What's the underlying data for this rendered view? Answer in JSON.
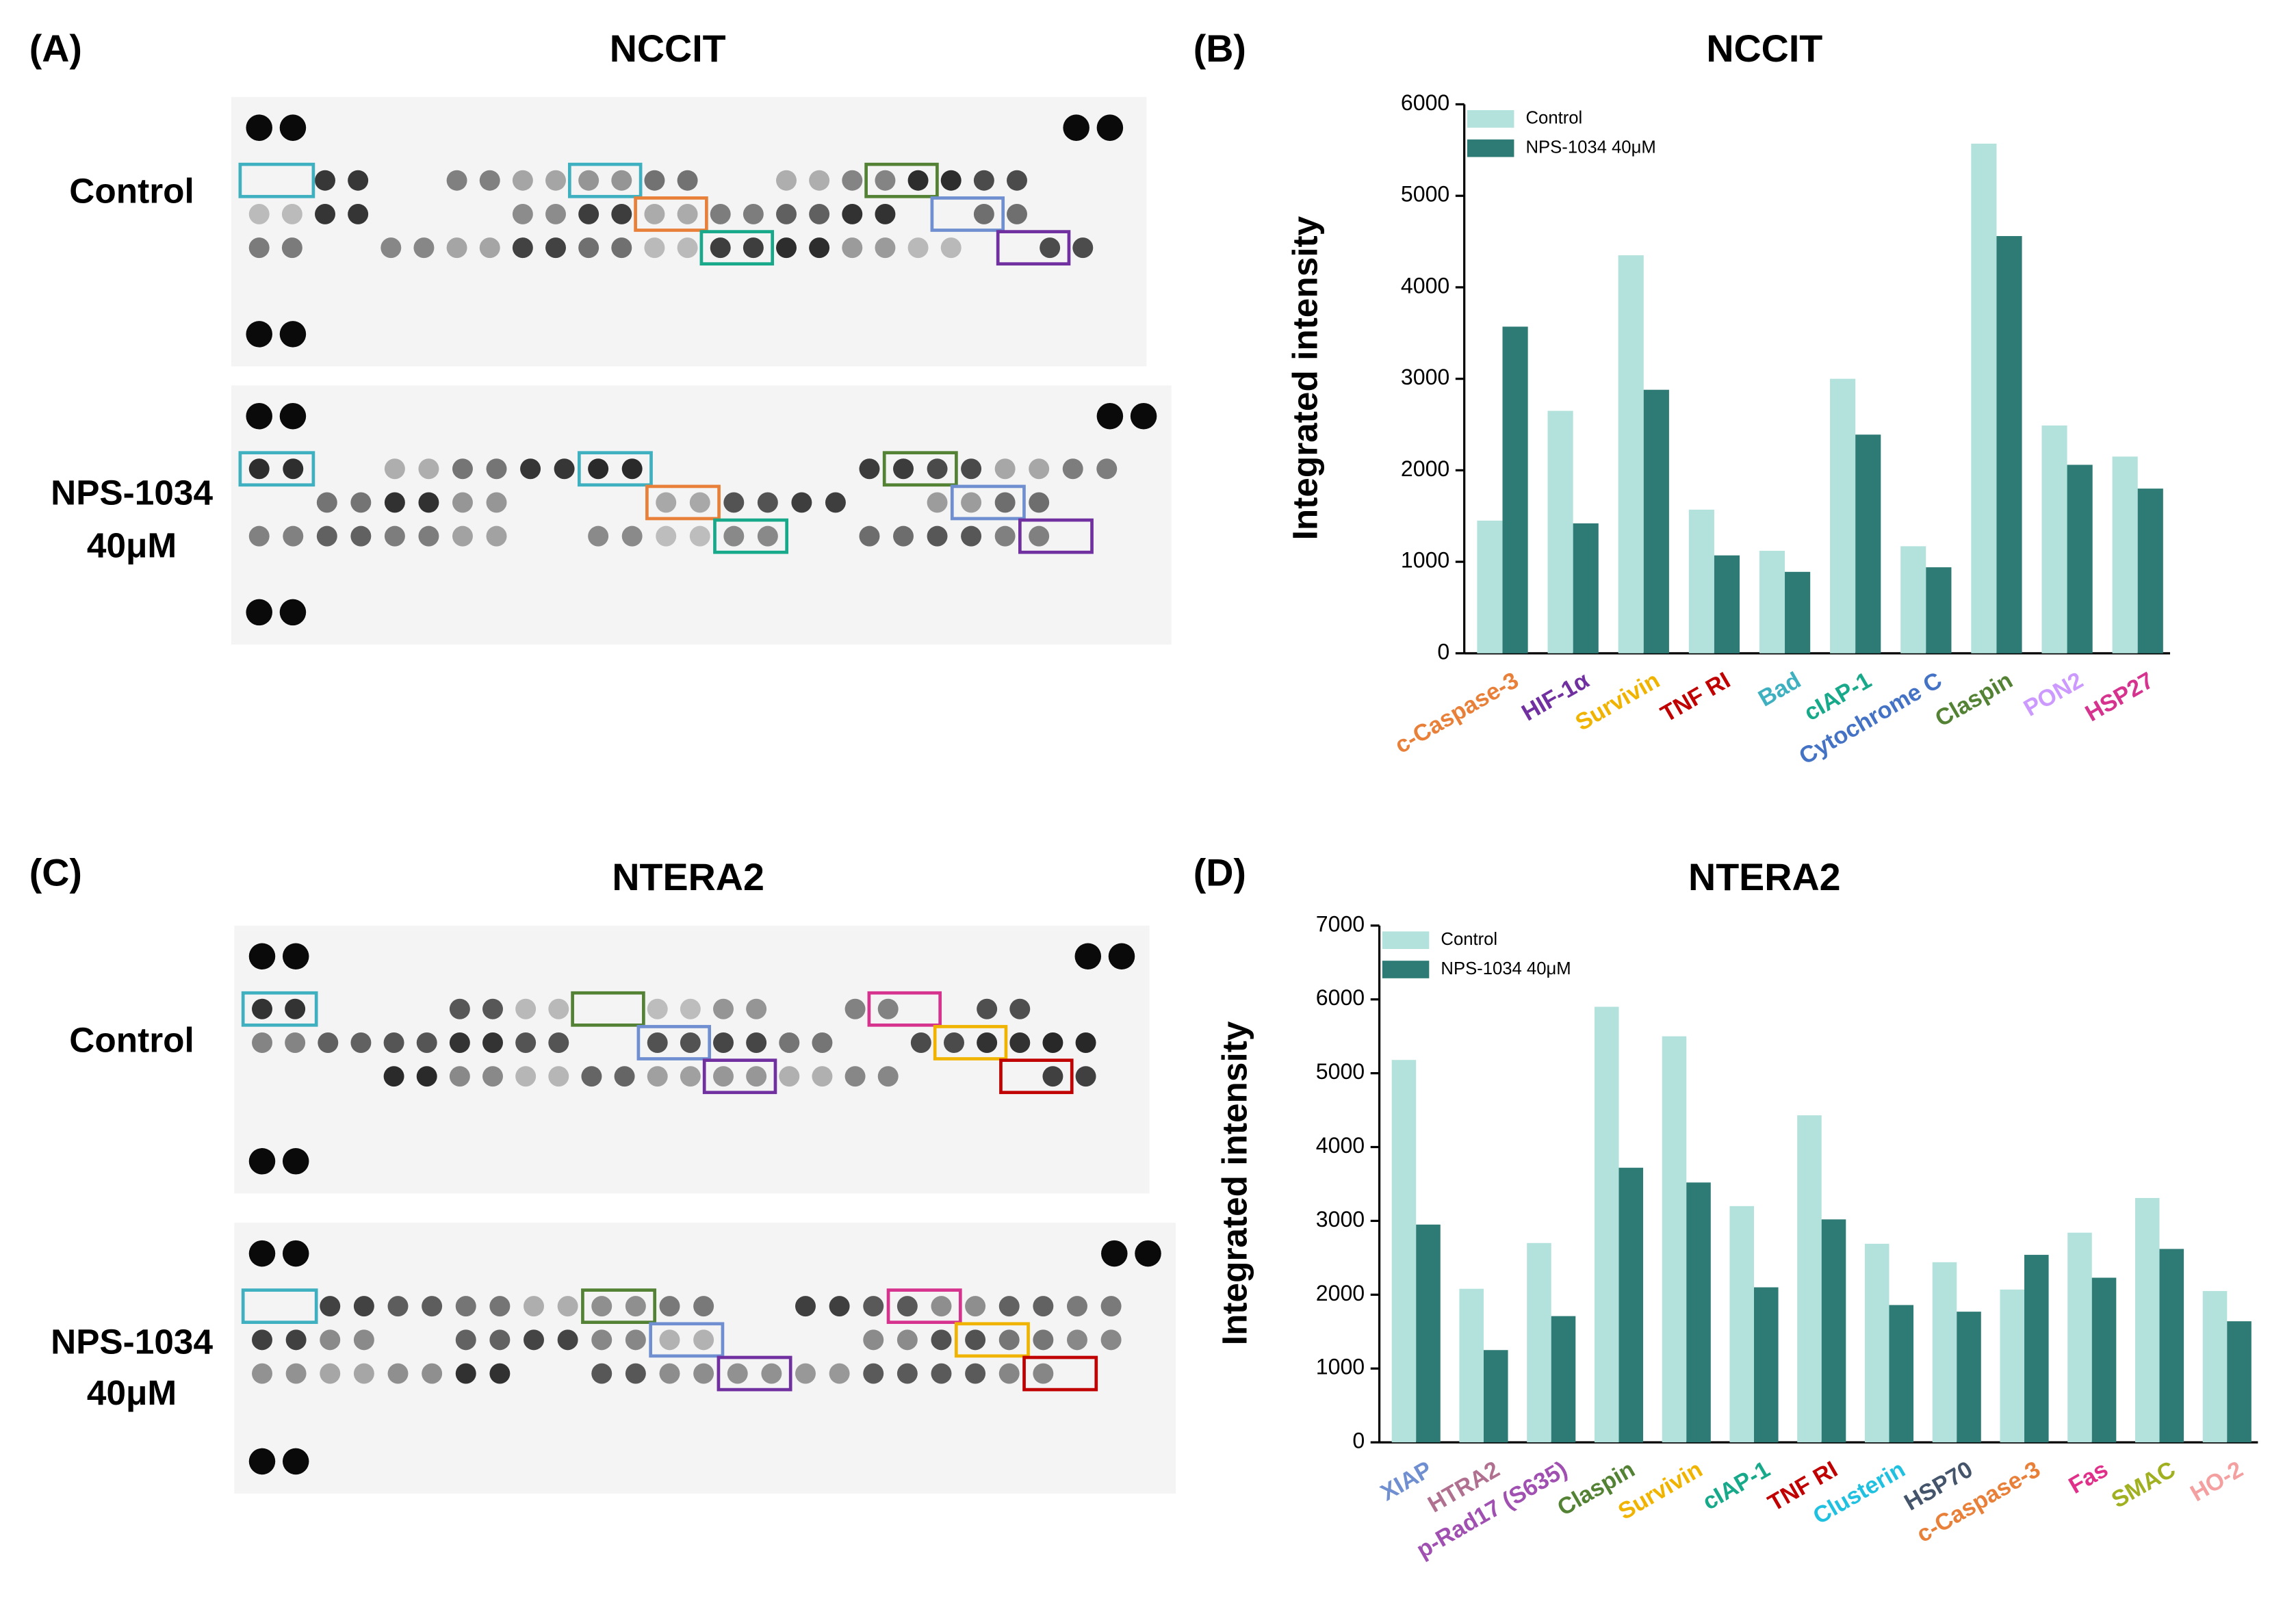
{
  "figure": {
    "panels": [
      {
        "label": "(A)",
        "title": "NCCIT",
        "rows": [
          [
            "Control"
          ],
          [
            "NPS-1034",
            "40μM"
          ]
        ]
      },
      {
        "label": "(C)",
        "title": "NTERA2",
        "rows": [
          [
            "Control"
          ],
          [
            "NPS-1034",
            "40μM"
          ]
        ]
      }
    ]
  },
  "chart_data": [
    {
      "type": "bar",
      "panel": "(B)",
      "title": "NCCIT",
      "ylabel": "Integrated intensity",
      "categories": [
        "c-Caspase-3",
        "HIF-1α",
        "Survivin",
        "TNF RI",
        "Bad",
        "cIAP-1",
        "Cytochrome C",
        "Claspin",
        "PON2",
        "HSP27"
      ],
      "category_colors": [
        "#e8803a",
        "#7030a0",
        "#f0b400",
        "#c00000",
        "#3fb0c0",
        "#18a88a",
        "#4472c4",
        "#548235",
        "#cc99ff",
        "#d6338f"
      ],
      "series": [
        {
          "name": "Control",
          "color": "#b3e2dd",
          "values": [
            1450,
            2650,
            4350,
            1570,
            1120,
            3000,
            1170,
            5570,
            2490,
            2150
          ]
        },
        {
          "name": "NPS-1034 40μM",
          "color": "#2e7b75",
          "values": [
            3570,
            1420,
            2880,
            1070,
            890,
            2390,
            940,
            4560,
            2060,
            1800
          ]
        }
      ],
      "ylim": [
        0,
        6000
      ],
      "yticks": [
        0,
        1000,
        2000,
        3000,
        4000,
        5000,
        6000
      ],
      "legend": "top-left"
    },
    {
      "type": "bar",
      "panel": "(D)",
      "title": "NTERA2",
      "ylabel": "Integrated intensity",
      "categories": [
        "XIAP",
        "HTRA2",
        "p-Rad17 (S635)",
        "Claspin",
        "Survivin",
        "cIAP-1",
        "TNF RI",
        "Clusterin",
        "HSP70",
        "c-Caspase-3",
        "Fas",
        "SMAC",
        "HO-2"
      ],
      "category_colors": [
        "#6f8fd0",
        "#b07090",
        "#a050b0",
        "#548235",
        "#f0b400",
        "#18a88a",
        "#c00000",
        "#20c0e0",
        "#44546a",
        "#e8803a",
        "#e0308a",
        "#a0b020",
        "#f4a0a0"
      ],
      "series": [
        {
          "name": "Control",
          "color": "#b3e2dd",
          "values": [
            5180,
            2080,
            2700,
            5900,
            5500,
            3200,
            4430,
            2690,
            2440,
            2070,
            2840,
            3310,
            2050
          ]
        },
        {
          "name": "NPS-1034 40μM",
          "color": "#2e7b75",
          "values": [
            2950,
            1250,
            1710,
            3720,
            3520,
            2100,
            3020,
            1860,
            1770,
            2540,
            2230,
            2620,
            1640
          ]
        }
      ],
      "ylim": [
        0,
        7000
      ],
      "yticks": [
        0,
        1000,
        2000,
        3000,
        4000,
        5000,
        6000,
        7000
      ],
      "legend": "top-left"
    }
  ]
}
